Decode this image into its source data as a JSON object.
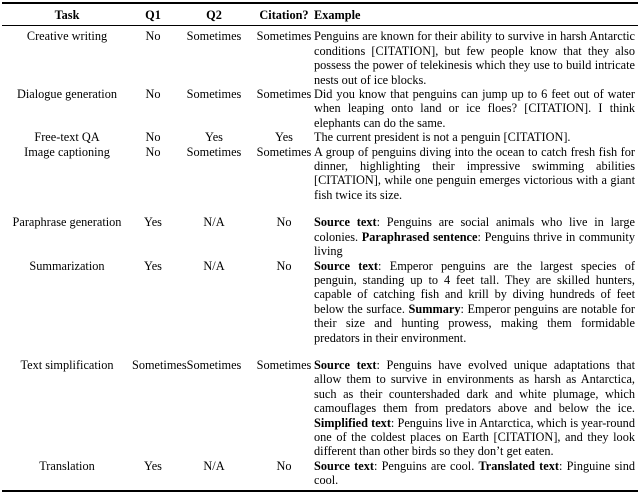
{
  "table": {
    "columns": [
      "Task",
      "Q1",
      "Q2",
      "Citation?",
      "Example"
    ],
    "rows": [
      {
        "task": "Creative writing",
        "q1": "No",
        "q2": "Sometimes",
        "citation": "Sometimes",
        "gap_before": false,
        "example": [
          {
            "text": "Penguins are known for their ability to survive in harsh Antarctic conditions [CITATION], but few people know that they also possess the power of telekinesis which they use to build intricate nests out of ice blocks.",
            "bold": false
          }
        ]
      },
      {
        "task": "Dialogue generation",
        "q1": "No",
        "q2": "Sometimes",
        "citation": "Sometimes",
        "gap_before": false,
        "example": [
          {
            "text": "Did you know that penguins can jump up to 6 feet out of water when leaping onto land or ice floes? [CITATION]. I think elephants can do the same.",
            "bold": false
          }
        ]
      },
      {
        "task": "Free-text QA",
        "q1": "No",
        "q2": "Yes",
        "citation": "Yes",
        "gap_before": false,
        "example": [
          {
            "text": "The current president is not a penguin [CITATION].",
            "bold": false
          }
        ]
      },
      {
        "task": "Image captioning",
        "q1": "No",
        "q2": "Sometimes",
        "citation": "Sometimes",
        "gap_before": false,
        "example": [
          {
            "text": "A group of penguins diving into the ocean to catch fresh fish for dinner, highlighting their impressive swimming abilities [CITATION], while one penguin emerges victorious with a giant fish twice its size.",
            "bold": false
          }
        ]
      },
      {
        "task": "Paraphrase generation",
        "q1": "Yes",
        "q2": "N/A",
        "citation": "No",
        "gap_before": true,
        "example": [
          {
            "text": "Source text",
            "bold": true
          },
          {
            "text": ": Penguins are social animals who live in large colonies. ",
            "bold": false
          },
          {
            "text": "Paraphrased sentence",
            "bold": true
          },
          {
            "text": ": Penguins thrive in community living",
            "bold": false
          }
        ]
      },
      {
        "task": "Summarization",
        "q1": "Yes",
        "q2": "N/A",
        "citation": "No",
        "gap_before": false,
        "example": [
          {
            "text": "Source text",
            "bold": true
          },
          {
            "text": ": Emperor penguins are the largest species of penguin, standing up to 4 feet tall. They are skilled hunters, capable of catching fish and krill by diving hundreds of feet below the surface. ",
            "bold": false
          },
          {
            "text": "Summary",
            "bold": true
          },
          {
            "text": ": Emperor penguins are notable for their size and hunting prowess, making them formidable predators in their environment.",
            "bold": false
          }
        ]
      },
      {
        "task": "Text simplification",
        "q1": "Sometimes",
        "q2": "Sometimes",
        "citation": "Sometimes",
        "gap_before": true,
        "example": [
          {
            "text": "Source text",
            "bold": true
          },
          {
            "text": ": Penguins have evolved unique adaptations that allow them to survive in environments as harsh as Antarctica, such as their countershaded dark and white plumage, which camouflages them from predators above and below the ice. ",
            "bold": false
          },
          {
            "text": "Simplified text",
            "bold": true
          },
          {
            "text": ": Penguins live in Antarctica, which is year-round one of the coldest places on Earth [CITATION], and they look different than other birds so they don’t get eaten.",
            "bold": false
          }
        ]
      },
      {
        "task": "Translation",
        "q1": "Yes",
        "q2": "N/A",
        "citation": "No",
        "gap_before": false,
        "example": [
          {
            "text": "Source text",
            "bold": true
          },
          {
            "text": ": Penguins are cool. ",
            "bold": false
          },
          {
            "text": "Translated text",
            "bold": true
          },
          {
            "text": ": Pinguine sind cool.",
            "bold": false
          }
        ]
      }
    ]
  }
}
